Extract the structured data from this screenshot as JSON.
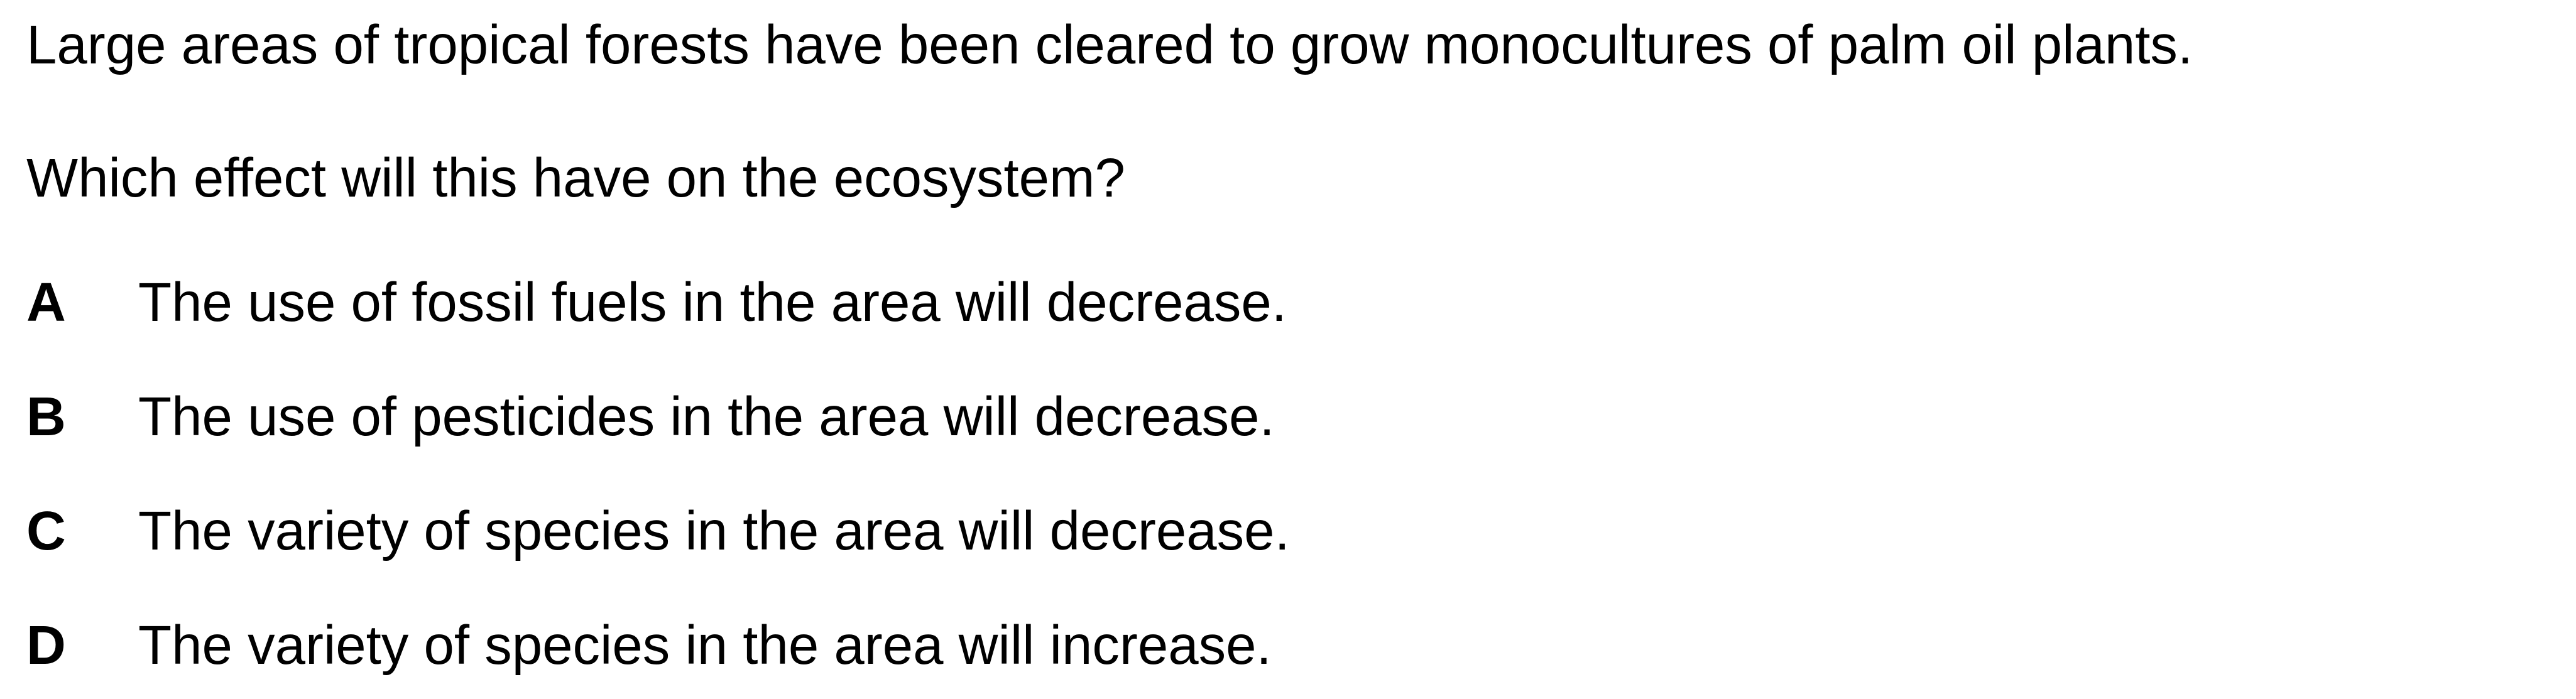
{
  "question": {
    "stem_line_1": "Large areas of tropical forests have been cleared to grow monocultures of palm oil plants.",
    "stem_line_2": "Which effect will this have on the ecosystem?"
  },
  "options": [
    {
      "letter": "A",
      "text": "The use of fossil fuels in the area will decrease."
    },
    {
      "letter": "B",
      "text": "The use of pesticides in the area will decrease."
    },
    {
      "letter": "C",
      "text": "The variety of species in the area will decrease."
    },
    {
      "letter": "D",
      "text": "The variety of species in the area will increase."
    }
  ]
}
